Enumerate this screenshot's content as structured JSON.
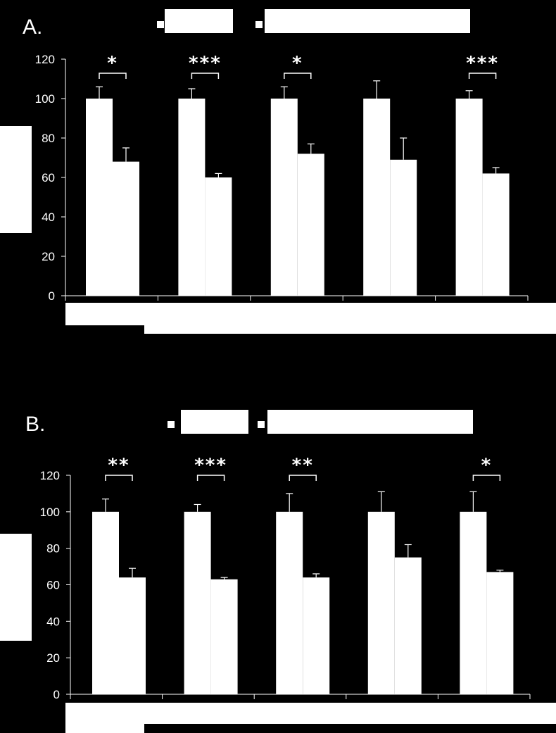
{
  "chart_data": [
    {
      "type": "bar",
      "panel_label": "A.",
      "ylim": [
        0,
        120
      ],
      "yticks": [
        0,
        20,
        40,
        60,
        80,
        100,
        120
      ],
      "legend_placement": "top",
      "grid": false,
      "series": [
        {
          "values": [
            100,
            100,
            100,
            100,
            100
          ],
          "errors": [
            6,
            5,
            6,
            9,
            4
          ],
          "color": "#ffffff"
        },
        {
          "values": [
            68,
            60,
            72,
            69,
            62
          ],
          "errors": [
            7,
            2,
            5,
            11,
            3
          ],
          "color": "#ffffff"
        }
      ],
      "significance": [
        "*",
        "***",
        "*",
        "",
        "***"
      ]
    },
    {
      "type": "bar",
      "panel_label": "B.",
      "ylim": [
        0,
        120
      ],
      "yticks": [
        0,
        20,
        40,
        60,
        80,
        100,
        120
      ],
      "legend_placement": "top",
      "grid": false,
      "series": [
        {
          "values": [
            100,
            100,
            100,
            100,
            100
          ],
          "errors": [
            7,
            4,
            10,
            11,
            11
          ],
          "color": "#ffffff"
        },
        {
          "values": [
            64,
            63,
            64,
            75,
            67
          ],
          "errors": [
            5,
            1,
            2,
            7,
            1
          ],
          "color": "#ffffff"
        }
      ],
      "significance": [
        "**",
        "***",
        "**",
        "",
        "*"
      ]
    }
  ]
}
